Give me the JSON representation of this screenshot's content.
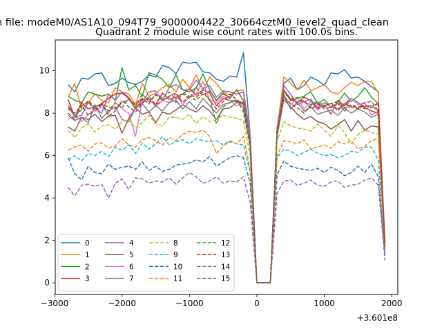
{
  "figure": {
    "suptitle": "n file: modeM0/AS1A10_094T79_9000004422_30664cztM0_level2_quad_clean",
    "title": "Quadrant 2 module wise count rates with 100.0s bins.",
    "offset_label": "+3.601e8"
  },
  "chart_data": {
    "type": "line",
    "title": "Quadrant 2 module wise count rates with 100.0s bins.",
    "xlabel": "",
    "ylabel": "",
    "x_offset": 360100000,
    "xlim": [
      -2990,
      2090
    ],
    "ylim": [
      -0.55,
      11.45
    ],
    "x_ticks": [
      -3000,
      -2000,
      -1000,
      0,
      1000,
      2000
    ],
    "x_tick_labels": [
      "−3000",
      "−2000",
      "−1000",
      "0",
      "1000",
      "2000"
    ],
    "y_ticks": [
      0,
      2,
      4,
      6,
      8,
      10
    ],
    "y_tick_labels": [
      "0",
      "2",
      "4",
      "6",
      "8",
      "10"
    ],
    "grid": false,
    "legend_position": "lower-left",
    "legend_columns": 4,
    "x": [
      -2800,
      -2700,
      -2600,
      -2500,
      -2400,
      -2300,
      -2200,
      -2100,
      -2000,
      -1900,
      -1800,
      -1700,
      -1600,
      -1500,
      -1400,
      -1300,
      -1200,
      -1100,
      -1000,
      -900,
      -800,
      -700,
      -600,
      -500,
      -400,
      -300,
      -200,
      -100,
      0,
      100,
      200,
      300,
      400,
      500,
      600,
      700,
      800,
      900,
      1000,
      1100,
      1200,
      1300,
      1400,
      1500,
      1600,
      1700,
      1800,
      1900
    ],
    "series": [
      {
        "name": "0",
        "color": "#1f77b4",
        "dash": "solid",
        "values": [
          9.35,
          9.0,
          9.65,
          9.6,
          9.85,
          9.9,
          9.3,
          9.4,
          9.65,
          9.45,
          9.35,
          9.5,
          9.8,
          9.7,
          10.25,
          10.15,
          9.85,
          10.4,
          10.35,
          10.4,
          9.95,
          9.9,
          9.6,
          9.5,
          9.75,
          9.7,
          10.85,
          7.0,
          0.0,
          0.0,
          0.0,
          7.3,
          9.4,
          9.65,
          9.1,
          9.3,
          9.7,
          9.55,
          9.3,
          9.9,
          9.85,
          10.05,
          9.65,
          9.7,
          9.5,
          9.25,
          9.0,
          1.5
        ]
      },
      {
        "name": "1",
        "color": "#ff7f0e",
        "dash": "solid",
        "values": [
          8.75,
          9.4,
          8.2,
          8.5,
          8.9,
          8.6,
          8.5,
          9.2,
          9.0,
          8.9,
          8.4,
          9.4,
          8.8,
          8.95,
          9.2,
          9.35,
          9.0,
          9.6,
          9.2,
          9.8,
          9.1,
          9.7,
          9.4,
          9.0,
          8.85,
          9.05,
          9.1,
          7.0,
          0.0,
          0.0,
          0.0,
          7.2,
          9.7,
          9.4,
          9.1,
          9.55,
          9.05,
          9.2,
          9.35,
          9.0,
          8.9,
          9.2,
          9.45,
          9.3,
          9.5,
          9.5,
          8.95,
          2.0
        ]
      },
      {
        "name": "2",
        "color": "#2ca02c",
        "dash": "solid",
        "values": [
          8.8,
          8.6,
          8.5,
          9.0,
          8.9,
          8.8,
          8.9,
          8.6,
          10.15,
          9.1,
          9.3,
          8.8,
          9.9,
          9.8,
          9.6,
          9.2,
          9.8,
          9.1,
          9.0,
          9.2,
          9.85,
          9.1,
          8.6,
          8.95,
          8.7,
          9.1,
          8.6,
          6.9,
          0.0,
          0.0,
          0.0,
          7.1,
          9.1,
          8.6,
          8.7,
          8.8,
          9.0,
          8.45,
          8.65,
          8.25,
          8.5,
          8.95,
          8.55,
          8.8,
          9.2,
          8.75,
          8.45,
          1.9
        ]
      },
      {
        "name": "3",
        "color": "#d62728",
        "dash": "solid",
        "values": [
          8.65,
          7.8,
          8.5,
          8.2,
          8.3,
          8.45,
          8.7,
          8.9,
          8.95,
          8.7,
          8.2,
          8.65,
          8.65,
          8.4,
          8.95,
          8.65,
          8.75,
          8.9,
          9.15,
          8.85,
          9.1,
          8.95,
          8.35,
          8.7,
          8.6,
          8.55,
          8.5,
          6.7,
          0.0,
          0.0,
          0.0,
          7.0,
          9.1,
          8.65,
          8.5,
          8.75,
          8.6,
          8.2,
          8.4,
          7.95,
          8.6,
          8.35,
          8.7,
          8.5,
          8.25,
          8.1,
          8.0,
          1.8
        ]
      },
      {
        "name": "4",
        "color": "#9467bd",
        "dash": "solid",
        "values": [
          8.4,
          7.8,
          7.9,
          8.5,
          8.25,
          8.0,
          8.9,
          8.6,
          9.0,
          8.75,
          8.25,
          8.5,
          9.0,
          9.05,
          8.6,
          9.2,
          9.35,
          9.1,
          9.1,
          9.55,
          9.15,
          9.3,
          8.75,
          9.05,
          9.0,
          8.9,
          9.0,
          6.8,
          0.0,
          0.0,
          0.0,
          7.1,
          9.3,
          8.9,
          8.4,
          8.55,
          8.65,
          8.25,
          8.5,
          8.3,
          8.2,
          8.45,
          8.7,
          8.5,
          8.3,
          8.35,
          8.4,
          1.8
        ]
      },
      {
        "name": "5",
        "color": "#8c564b",
        "dash": "solid",
        "values": [
          7.35,
          7.15,
          7.8,
          7.7,
          7.95,
          7.6,
          7.85,
          7.9,
          7.05,
          7.75,
          8.25,
          7.95,
          8.05,
          7.55,
          8.05,
          7.95,
          8.15,
          8.4,
          8.2,
          8.05,
          8.35,
          8.1,
          7.7,
          8.2,
          8.25,
          8.5,
          8.45,
          6.5,
          0.0,
          0.0,
          0.0,
          6.9,
          8.65,
          8.3,
          7.95,
          7.7,
          7.85,
          7.6,
          7.5,
          7.25,
          7.45,
          7.7,
          7.15,
          7.65,
          7.2,
          7.4,
          7.35,
          1.6
        ]
      },
      {
        "name": "6",
        "color": "#e377c2",
        "dash": "solid",
        "values": [
          7.7,
          7.9,
          7.6,
          7.95,
          8.1,
          8.3,
          8.0,
          8.5,
          8.2,
          8.0,
          6.9,
          8.6,
          8.7,
          8.3,
          8.6,
          8.5,
          8.9,
          8.4,
          8.75,
          8.9,
          9.5,
          8.6,
          8.5,
          8.8,
          8.6,
          8.35,
          8.5,
          6.6,
          0.0,
          0.0,
          0.0,
          7.05,
          8.85,
          8.4,
          8.7,
          8.2,
          8.55,
          8.15,
          8.4,
          8.0,
          8.5,
          8.1,
          8.7,
          8.4,
          8.5,
          7.9,
          8.1,
          1.7
        ]
      },
      {
        "name": "7",
        "color": "#7f7f7f",
        "dash": "solid",
        "values": [
          7.9,
          7.65,
          7.8,
          7.55,
          8.4,
          7.75,
          8.1,
          8.3,
          7.7,
          7.6,
          8.25,
          8.45,
          8.05,
          8.35,
          8.1,
          8.5,
          8.6,
          8.2,
          8.55,
          8.2,
          8.7,
          8.35,
          8.0,
          8.4,
          8.5,
          8.6,
          8.25,
          6.5,
          0.0,
          0.0,
          0.0,
          6.95,
          8.85,
          8.2,
          8.5,
          8.1,
          8.3,
          7.95,
          8.05,
          8.15,
          7.9,
          8.25,
          8.0,
          8.2,
          8.05,
          7.8,
          7.95,
          1.6
        ]
      },
      {
        "name": "8",
        "color": "#bcbd22",
        "dash": "dashed",
        "values": [
          7.2,
          6.85,
          7.3,
          7.5,
          7.1,
          7.4,
          7.45,
          7.25,
          7.6,
          7.7,
          7.3,
          7.55,
          7.9,
          7.5,
          7.4,
          7.8,
          7.8,
          7.7,
          7.95,
          7.5,
          7.85,
          7.6,
          7.7,
          7.9,
          7.8,
          7.75,
          7.65,
          6.0,
          0.0,
          0.0,
          0.0,
          6.7,
          7.6,
          7.4,
          7.3,
          7.25,
          7.15,
          7.5,
          7.2,
          6.9,
          7.4,
          7.1,
          6.55,
          7.0,
          7.2,
          7.1,
          7.0,
          1.5
        ]
      },
      {
        "name": "9",
        "color": "#17becf",
        "dash": "dashed",
        "values": [
          5.8,
          6.0,
          5.75,
          6.1,
          6.0,
          6.2,
          5.95,
          6.4,
          6.25,
          6.5,
          6.1,
          6.6,
          6.3,
          6.55,
          6.9,
          6.5,
          6.65,
          6.75,
          6.55,
          6.8,
          6.7,
          6.65,
          6.7,
          6.5,
          6.7,
          6.55,
          6.5,
          5.2,
          0.0,
          0.0,
          0.0,
          5.9,
          6.3,
          6.2,
          6.0,
          6.15,
          6.3,
          6.1,
          6.0,
          6.05,
          5.9,
          6.0,
          6.2,
          6.15,
          6.4,
          6.4,
          5.8,
          1.35
        ]
      },
      {
        "name": "10",
        "color": "#1f77b4",
        "dash": "dashed",
        "values": [
          5.9,
          5.15,
          4.85,
          5.5,
          5.2,
          5.15,
          5.6,
          5.35,
          5.45,
          5.5,
          5.35,
          5.7,
          5.3,
          5.5,
          5.25,
          5.35,
          5.55,
          5.6,
          5.65,
          5.8,
          5.7,
          5.95,
          5.5,
          5.7,
          5.9,
          6.0,
          5.9,
          4.7,
          0.0,
          0.0,
          0.0,
          5.1,
          5.75,
          5.5,
          5.4,
          5.35,
          5.3,
          5.4,
          5.2,
          5.45,
          5.3,
          5.05,
          5.2,
          5.5,
          5.2,
          5.6,
          5.0,
          1.3
        ]
      },
      {
        "name": "11",
        "color": "#ff7f0e",
        "dash": "dashed",
        "values": [
          6.25,
          6.4,
          6.5,
          6.2,
          6.55,
          6.6,
          6.35,
          6.45,
          6.8,
          6.5,
          6.4,
          6.75,
          6.85,
          6.7,
          6.5,
          6.85,
          6.7,
          7.0,
          7.15,
          7.1,
          7.2,
          6.9,
          6.1,
          6.45,
          6.65,
          6.55,
          6.9,
          5.4,
          0.0,
          0.0,
          0.0,
          6.0,
          6.7,
          6.65,
          6.55,
          6.75,
          6.3,
          6.4,
          6.5,
          6.35,
          6.65,
          6.55,
          6.7,
          6.3,
          6.45,
          6.7,
          6.8,
          1.45
        ]
      },
      {
        "name": "12",
        "color": "#2ca02c",
        "dash": "dashed",
        "values": [
          8.3,
          7.9,
          8.15,
          8.6,
          8.3,
          8.4,
          8.1,
          8.5,
          8.25,
          8.7,
          8.3,
          8.9,
          8.55,
          8.85,
          8.7,
          9.0,
          8.65,
          8.95,
          8.8,
          8.6,
          8.9,
          8.7,
          7.5,
          8.3,
          8.5,
          8.65,
          8.05,
          6.4,
          0.0,
          0.0,
          0.0,
          7.1,
          9.05,
          8.6,
          8.75,
          8.5,
          8.4,
          8.55,
          8.35,
          8.45,
          8.55,
          8.25,
          8.4,
          8.3,
          8.2,
          8.35,
          8.1,
          1.75
        ]
      },
      {
        "name": "13",
        "color": "#d62728",
        "dash": "dashed",
        "values": [
          8.2,
          8.0,
          8.35,
          8.55,
          8.1,
          8.4,
          8.3,
          8.2,
          8.5,
          8.65,
          8.4,
          8.7,
          8.45,
          8.9,
          8.6,
          8.8,
          8.95,
          8.5,
          8.85,
          8.75,
          9.0,
          8.6,
          8.2,
          8.55,
          8.9,
          8.65,
          8.4,
          6.6,
          0.0,
          0.0,
          0.0,
          7.2,
          8.9,
          8.75,
          8.5,
          8.6,
          8.2,
          8.4,
          8.3,
          8.5,
          8.1,
          8.45,
          8.3,
          8.2,
          8.4,
          8.25,
          8.5,
          1.7
        ]
      },
      {
        "name": "14",
        "color": "#9467bd",
        "dash": "dashed",
        "values": [
          4.5,
          4.1,
          4.6,
          4.65,
          4.55,
          4.65,
          4.0,
          4.7,
          4.9,
          4.4,
          4.95,
          4.9,
          4.7,
          4.8,
          4.75,
          4.95,
          4.65,
          4.95,
          5.2,
          5.0,
          4.7,
          4.8,
          5.0,
          4.7,
          4.8,
          4.75,
          5.0,
          3.8,
          0.0,
          0.0,
          0.0,
          4.2,
          4.8,
          4.85,
          4.6,
          4.7,
          4.85,
          4.6,
          4.55,
          4.75,
          4.8,
          4.5,
          4.6,
          4.65,
          4.85,
          4.95,
          4.6,
          1.05
        ]
      },
      {
        "name": "15",
        "color": "#8c564b",
        "dash": "dashed",
        "values": [
          8.0,
          7.7,
          8.35,
          7.9,
          8.2,
          8.5,
          7.85,
          8.1,
          8.6,
          8.3,
          8.05,
          8.45,
          8.8,
          8.4,
          8.6,
          8.75,
          8.5,
          8.9,
          8.7,
          9.2,
          8.85,
          9.05,
          8.6,
          8.9,
          8.75,
          9.1,
          8.6,
          6.5,
          0.0,
          0.0,
          0.0,
          7.0,
          8.75,
          8.45,
          8.25,
          8.0,
          8.35,
          8.5,
          8.2,
          8.3,
          8.45,
          8.1,
          8.35,
          8.25,
          8.5,
          8.55,
          8.1,
          1.7
        ]
      }
    ]
  }
}
